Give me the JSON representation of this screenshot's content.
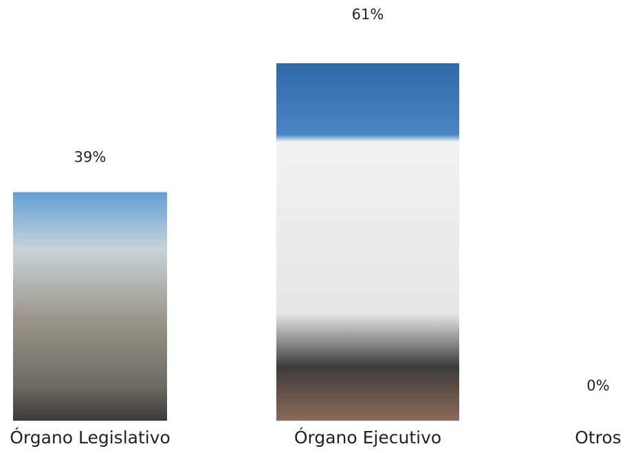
{
  "chart_data": {
    "type": "pictogram-bar",
    "categories": [
      "Órgano Legislativo",
      "Órgano Ejecutivo",
      "Otros"
    ],
    "values": [
      39,
      61,
      0
    ],
    "value_labels": [
      "39%",
      "61%",
      "0%"
    ]
  }
}
